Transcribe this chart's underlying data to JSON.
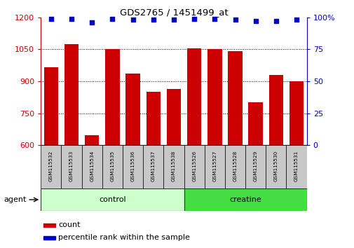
{
  "title": "GDS2765 / 1451499_at",
  "categories": [
    "GSM115532",
    "GSM115533",
    "GSM115534",
    "GSM115535",
    "GSM115536",
    "GSM115537",
    "GSM115538",
    "GSM115526",
    "GSM115527",
    "GSM115528",
    "GSM115529",
    "GSM115530",
    "GSM115531"
  ],
  "counts": [
    965,
    1075,
    648,
    1050,
    935,
    850,
    865,
    1053,
    1050,
    1040,
    800,
    930,
    900
  ],
  "percentiles": [
    99,
    99,
    96,
    99,
    98,
    98,
    98,
    99,
    99,
    98,
    97,
    97,
    98
  ],
  "groups": [
    {
      "label": "control",
      "start": 0,
      "end": 7,
      "color": "#CCFFCC"
    },
    {
      "label": "creatine",
      "start": 7,
      "end": 13,
      "color": "#44DD44"
    }
  ],
  "bar_color": "#CC0000",
  "dot_color": "#0000CC",
  "ylim_left": [
    600,
    1200
  ],
  "ylim_right": [
    0,
    100
  ],
  "yticks_left": [
    600,
    750,
    900,
    1050,
    1200
  ],
  "yticks_right": [
    0,
    25,
    50,
    75,
    100
  ],
  "ylabel_left_color": "#CC0000",
  "ylabel_right_color": "#0000CC",
  "grid_color": "#000000",
  "xtick_box_color": "#C8C8C8",
  "agent_label": "agent",
  "legend_count_label": "count",
  "legend_percentile_label": "percentile rank within the sample"
}
